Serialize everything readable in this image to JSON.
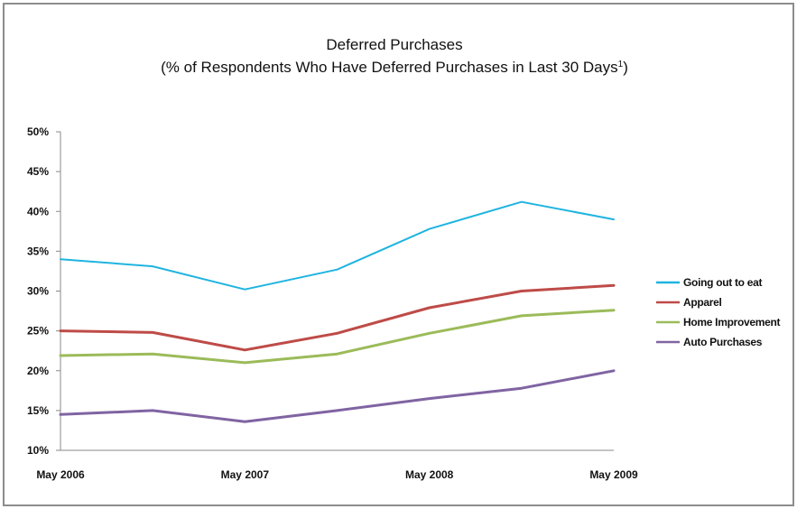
{
  "chart_data": {
    "type": "line",
    "title": "Deferred Purchases",
    "subtitle": "(% of Respondents Who Have Deferred Purchases in Last 30 Days",
    "subtitle_superscript": "1",
    "subtitle_close": ")",
    "xlabel": "",
    "ylabel": "",
    "x_ticks": [
      "May 2006",
      "May 2007",
      "May 2008",
      "May 2009"
    ],
    "y_ticks": [
      "10%",
      "15%",
      "20%",
      "25%",
      "30%",
      "35%",
      "40%",
      "45%",
      "50%"
    ],
    "y_tick_values": [
      10,
      15,
      20,
      25,
      30,
      35,
      40,
      45,
      50
    ],
    "ylim": [
      10,
      50
    ],
    "x_points": [
      "May 2006",
      "",
      "May 2007",
      "",
      "May 2008",
      "",
      "May 2009"
    ],
    "grid": false,
    "legend_position": "right",
    "series": [
      {
        "name": "Going out to eat",
        "color": "#1fb4e0",
        "values": [
          34.0,
          33.1,
          30.2,
          32.7,
          37.8,
          41.2,
          39.0
        ]
      },
      {
        "name": "Apparel",
        "color": "#be4b48",
        "values": [
          25.0,
          24.8,
          22.6,
          24.7,
          27.9,
          30.0,
          30.7
        ]
      },
      {
        "name": "Home Improvement",
        "color": "#9bbb59",
        "values": [
          21.9,
          22.1,
          21.0,
          22.1,
          24.7,
          26.9,
          27.6
        ]
      },
      {
        "name": "Auto Purchases",
        "color": "#8064a2",
        "values": [
          14.5,
          15.0,
          13.6,
          15.0,
          16.5,
          17.8,
          20.0
        ]
      }
    ]
  }
}
